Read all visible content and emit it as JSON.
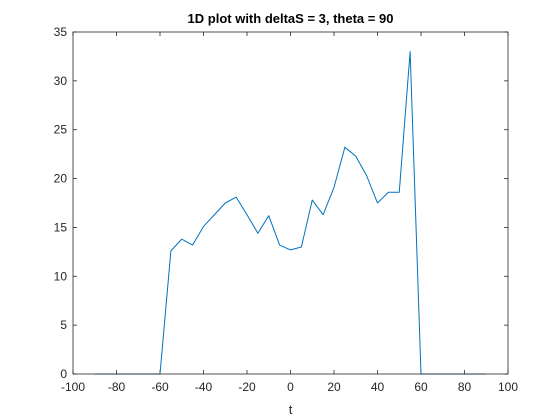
{
  "chart_data": {
    "type": "line",
    "title": "1D plot with deltaS = 3, theta = 90",
    "xlabel": "t",
    "ylabel": "",
    "xlim": [
      -100,
      100
    ],
    "ylim": [
      0,
      35
    ],
    "xticks": [
      -100,
      -80,
      -60,
      -40,
      -20,
      0,
      20,
      40,
      60,
      80,
      100
    ],
    "yticks": [
      0,
      5,
      10,
      15,
      20,
      25,
      30,
      35
    ],
    "grid": false,
    "box": true,
    "series": [
      {
        "color": "#0072BD",
        "x": [
          -90,
          -85,
          -80,
          -75,
          -70,
          -65,
          -60,
          -55,
          -50,
          -45,
          -40,
          -35,
          -30,
          -25,
          -20,
          -15,
          -10,
          -5,
          0,
          5,
          10,
          15,
          20,
          25,
          30,
          35,
          40,
          45,
          50,
          55,
          60,
          65,
          70,
          75,
          80,
          85,
          90
        ],
        "y": [
          0,
          0,
          0,
          0,
          0,
          0,
          0,
          12.6,
          13.8,
          13.2,
          15.1,
          16.3,
          17.5,
          18.1,
          16.3,
          14.4,
          16.2,
          13.2,
          12.7,
          13.0,
          17.8,
          16.3,
          19.1,
          23.2,
          22.3,
          20.3,
          17.5,
          18.6,
          18.6,
          33.0,
          0,
          0,
          0,
          0,
          0,
          0,
          0
        ]
      }
    ]
  }
}
